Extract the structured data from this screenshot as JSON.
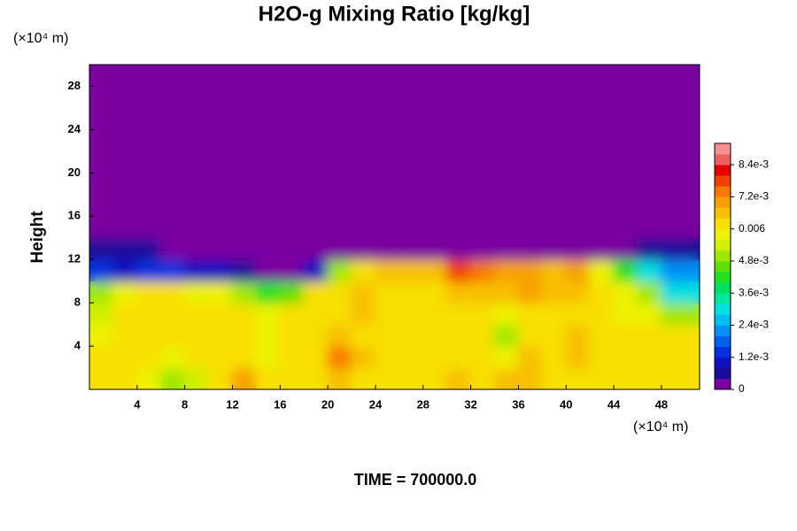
{
  "chart_data": {
    "type": "heatmap",
    "title": "H2O-g Mixing Ratio [kg/kg]",
    "ylabel": "Height",
    "yunit": "(×10⁴ m)",
    "xunit": "(×10⁴ m)",
    "footer": "TIME = 700000.0",
    "xlim": [
      0,
      51.2
    ],
    "ylim": [
      0,
      30
    ],
    "xticks": [
      4,
      8,
      12,
      16,
      20,
      24,
      28,
      32,
      36,
      40,
      44,
      48
    ],
    "yticks": [
      4,
      8,
      12,
      16,
      20,
      24,
      28
    ],
    "x": [
      1,
      3,
      5,
      7,
      9,
      11,
      13,
      15,
      17,
      19,
      21,
      23,
      25,
      27,
      29,
      31,
      33,
      35,
      37,
      39,
      41,
      43,
      45,
      47,
      49
    ],
    "y": [
      1,
      3,
      5,
      7,
      9,
      11,
      13,
      15,
      17,
      19,
      21,
      23,
      25,
      27,
      29
    ],
    "z": [
      [
        0.0062,
        0.006,
        0.0058,
        0.0052,
        0.0054,
        0.0062,
        0.0068,
        0.0062,
        0.006,
        0.0062,
        0.0064,
        0.0062,
        0.0062,
        0.0062,
        0.0062,
        0.0064,
        0.0062,
        0.0066,
        0.0064,
        0.0062,
        0.006,
        0.0062,
        0.0062,
        0.0062,
        0.006
      ],
      [
        0.006,
        0.0062,
        0.0062,
        0.0058,
        0.006,
        0.0062,
        0.006,
        0.0058,
        0.0062,
        0.006,
        0.0074,
        0.0064,
        0.0062,
        0.0062,
        0.0062,
        0.0062,
        0.0062,
        0.0056,
        0.0066,
        0.0062,
        0.0064,
        0.006,
        0.0062,
        0.0062,
        0.006
      ],
      [
        0.0058,
        0.006,
        0.0062,
        0.0062,
        0.006,
        0.0062,
        0.0062,
        0.0056,
        0.006,
        0.0062,
        0.0064,
        0.0062,
        0.0062,
        0.0062,
        0.0062,
        0.0062,
        0.006,
        0.0052,
        0.0062,
        0.0062,
        0.0066,
        0.006,
        0.0062,
        0.006,
        0.006
      ],
      [
        0.0054,
        0.006,
        0.0062,
        0.006,
        0.006,
        0.0062,
        0.0062,
        0.0056,
        0.006,
        0.0062,
        0.0062,
        0.0064,
        0.0062,
        0.0062,
        0.0062,
        0.0062,
        0.006,
        0.0056,
        0.0062,
        0.0062,
        0.0062,
        0.006,
        0.0058,
        0.0056,
        0.005
      ],
      [
        0.0052,
        0.0058,
        0.006,
        0.006,
        0.0058,
        0.0056,
        0.005,
        0.004,
        0.0045,
        0.006,
        0.0062,
        0.0064,
        0.0062,
        0.0062,
        0.0062,
        0.0064,
        0.0066,
        0.0064,
        0.007,
        0.0066,
        0.0064,
        0.006,
        0.0056,
        0.0048,
        0.003
      ],
      [
        0.0012,
        0.001,
        0.0015,
        0.0012,
        0.001,
        0.0008,
        0.0004,
        0.0002,
        0.0003,
        0.0008,
        0.005,
        0.0062,
        0.0064,
        0.0064,
        0.0066,
        0.0078,
        0.0072,
        0.0068,
        0.007,
        0.0064,
        0.0068,
        0.0058,
        0.004,
        0.003,
        0.002
      ],
      [
        0.0004,
        0.0006,
        0.0004,
        0.0003,
        0.0002,
        0.0002,
        0,
        0,
        0,
        0,
        0,
        0,
        0,
        0,
        0,
        0,
        0,
        0,
        0,
        0,
        0,
        0.0002,
        0.0003,
        0.0004,
        0.0006
      ],
      [
        0,
        0,
        0,
        0,
        0,
        0,
        0,
        0,
        0,
        0,
        0,
        0,
        0,
        0,
        0,
        0,
        0,
        0,
        0,
        0,
        0,
        0,
        0,
        0,
        0
      ],
      [
        0,
        0,
        0,
        0,
        0,
        0,
        0,
        0,
        0,
        0,
        0,
        0,
        0,
        0,
        0,
        0,
        0,
        0,
        0,
        0,
        0,
        0,
        0,
        0,
        0
      ],
      [
        0,
        0,
        0,
        0,
        0,
        0,
        0,
        0,
        0,
        0,
        0,
        0,
        0,
        0,
        0,
        0,
        0,
        0,
        0,
        0,
        0,
        0,
        0,
        0,
        0
      ],
      [
        0,
        0,
        0,
        0,
        0,
        0,
        0,
        0,
        0,
        0,
        0,
        0,
        0,
        0,
        0,
        0,
        0,
        0,
        0,
        0,
        0,
        0,
        0,
        0,
        0
      ],
      [
        0,
        0,
        0,
        0,
        0,
        0,
        0,
        0,
        0,
        0,
        0,
        0,
        0,
        0,
        0,
        0,
        0,
        0,
        0,
        0,
        0,
        0,
        0,
        0,
        0
      ],
      [
        0,
        0,
        0,
        0,
        0,
        0,
        0,
        0,
        0,
        0,
        0,
        0,
        0,
        0,
        0,
        0,
        0,
        0,
        0,
        0,
        0,
        0,
        0,
        0,
        0
      ],
      [
        0,
        0,
        0,
        0,
        0,
        0,
        0,
        0,
        0,
        0,
        0,
        0,
        0,
        0,
        0,
        0,
        0,
        0,
        0,
        0,
        0,
        0,
        0,
        0,
        0
      ],
      [
        0,
        0,
        0,
        0,
        0,
        0,
        0,
        0,
        0,
        0,
        0,
        0,
        0,
        0,
        0,
        0,
        0,
        0,
        0,
        0,
        0,
        0,
        0,
        0,
        0
      ]
    ],
    "clim": [
      0,
      0.0092
    ],
    "cticks": [
      0,
      {
        "value": 0.0012,
        "label": "1.2e-3"
      },
      {
        "value": 0.0024,
        "label": "2.4e-3"
      },
      {
        "value": 0.0036,
        "label": "3.6e-3"
      },
      {
        "value": 0.0048,
        "label": "4.8e-3"
      },
      0.006,
      {
        "value": 0.0072,
        "label": "7.2e-3"
      },
      {
        "value": 0.0084,
        "label": "8.4e-3"
      }
    ],
    "colors": [
      "#7a00a0",
      "#1a0a9a",
      "#1010c0",
      "#0030e0",
      "#0060f0",
      "#0090f8",
      "#00c0f0",
      "#00e0e0",
      "#00e8a0",
      "#00e060",
      "#20e020",
      "#60e000",
      "#a0e800",
      "#d0f000",
      "#eef200",
      "#f8e000",
      "#f8c000",
      "#f8a000",
      "#f87800",
      "#f04000",
      "#e80000",
      "#f06060",
      "#f89090"
    ]
  }
}
